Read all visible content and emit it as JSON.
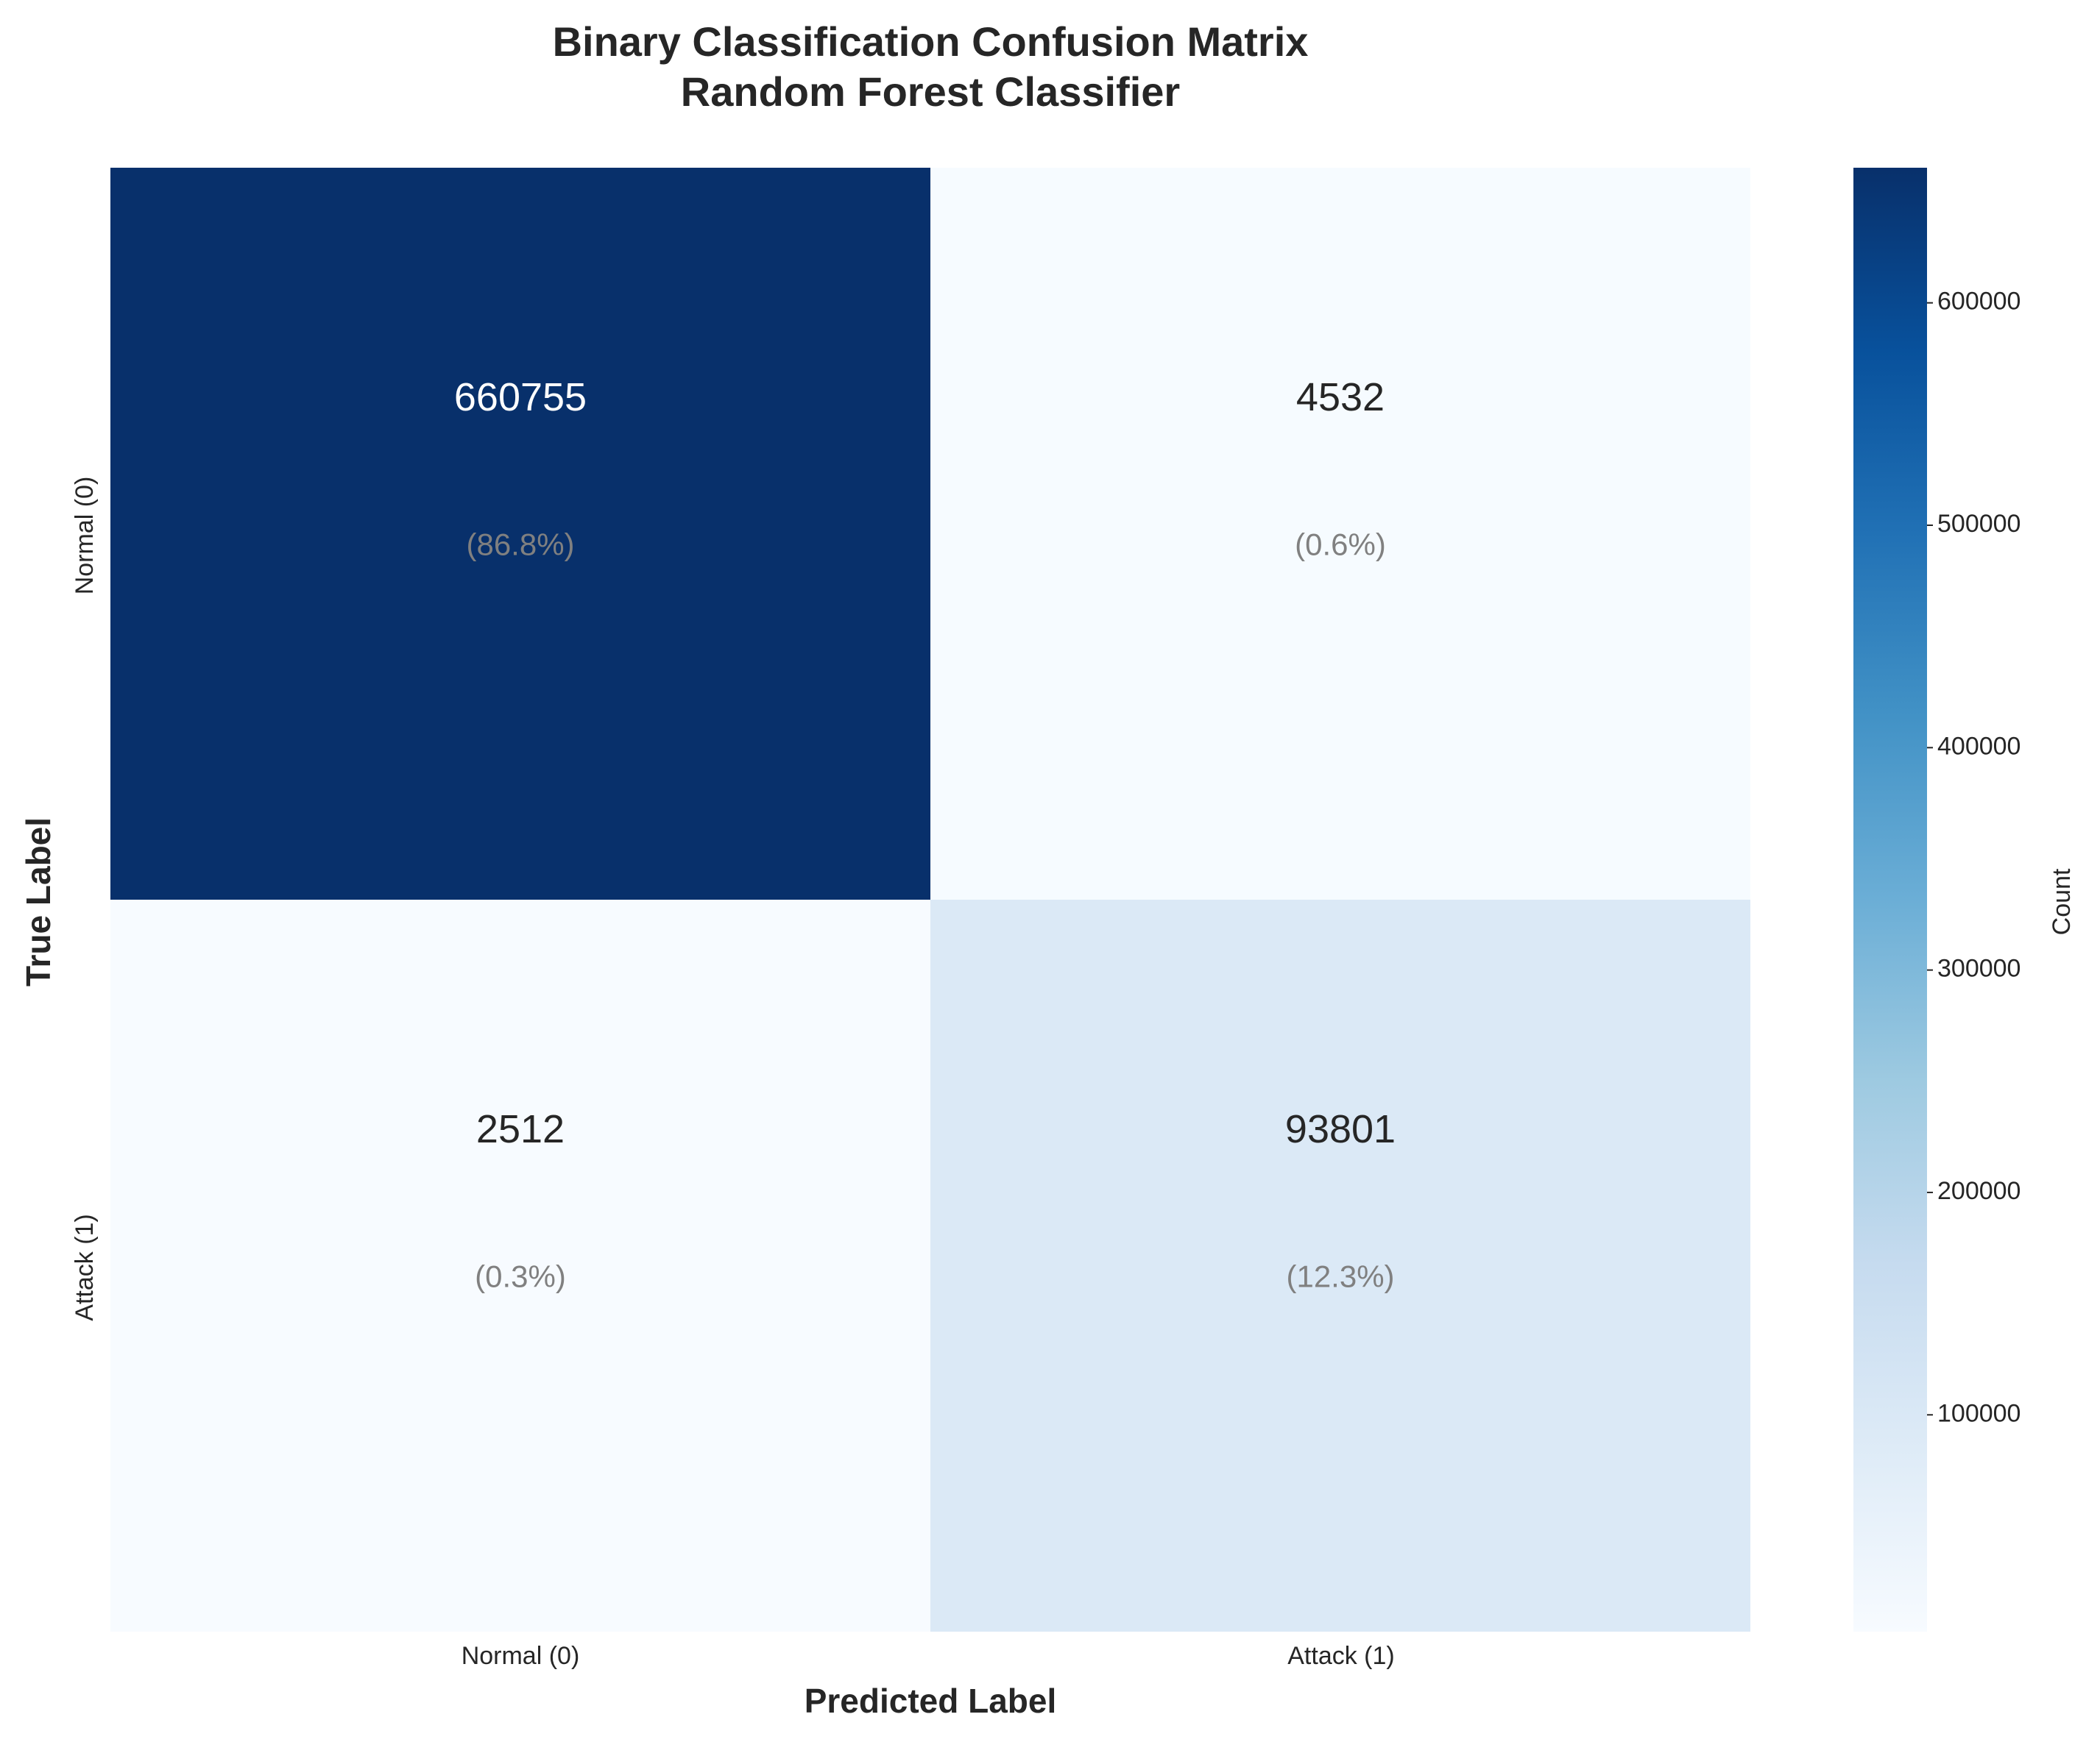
{
  "chart_data": {
    "type": "heatmap",
    "title": "Binary Classification Confusion Matrix",
    "subtitle": "Random Forest Classifier",
    "xlabel": "Predicted Label",
    "ylabel": "True Label",
    "x_categories": [
      "Normal (0)",
      "Attack (1)"
    ],
    "y_categories": [
      "Normal (0)",
      "Attack (1)"
    ],
    "cells": [
      {
        "row": 0,
        "col": 0,
        "value": "660755",
        "percent": "(86.8%)"
      },
      {
        "row": 0,
        "col": 1,
        "value": "4532",
        "percent": "(0.6%)"
      },
      {
        "row": 1,
        "col": 0,
        "value": "2512",
        "percent": "(0.3%)"
      },
      {
        "row": 1,
        "col": 1,
        "value": "93801",
        "percent": "(12.3%)"
      }
    ],
    "values": [
      [
        660755,
        4532
      ],
      [
        2512,
        93801
      ]
    ],
    "colormap": "Blues",
    "colorbar": {
      "label": "Count",
      "range": [
        2512,
        660755
      ],
      "ticks": [
        "100000",
        "200000",
        "300000",
        "400000",
        "500000",
        "600000"
      ]
    },
    "colors": {
      "dark_text": "#262626",
      "light_text": "#ffffff",
      "percent_text": "#808080"
    }
  }
}
